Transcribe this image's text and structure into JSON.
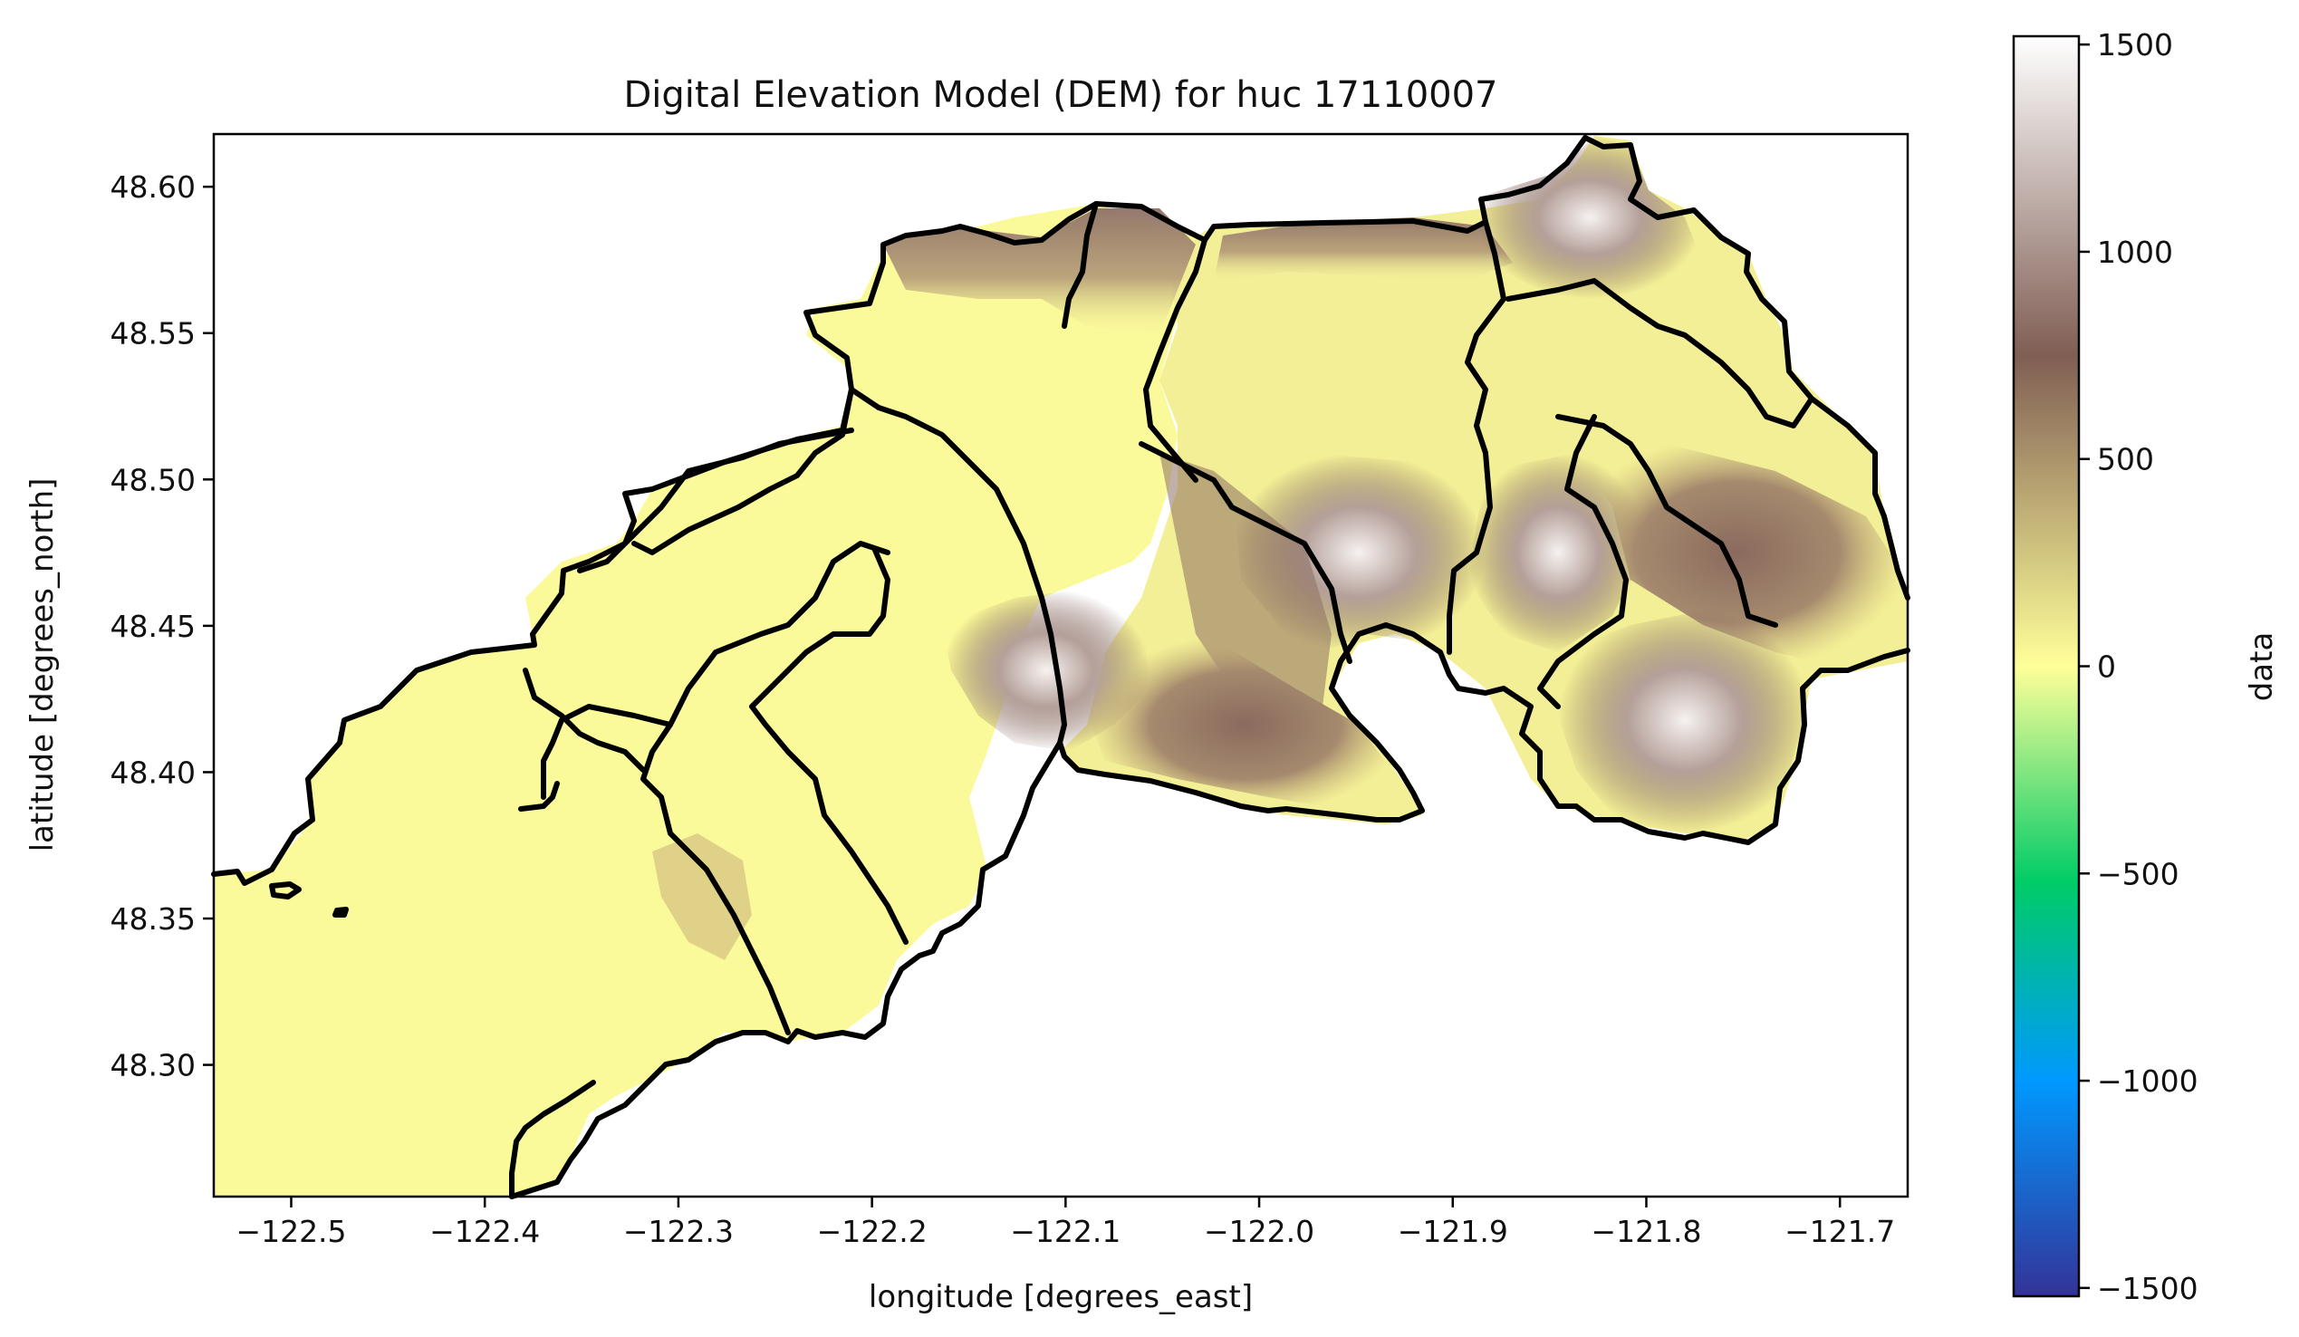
{
  "title": "Digital Elevation Model (DEM) for huc 17110007",
  "map": {
    "xlabel": "longitude [degrees_east]",
    "ylabel": "latitude [degrees_north]",
    "xlim": [
      -122.54,
      -121.665
    ],
    "ylim": [
      48.255,
      48.618
    ],
    "x_ticks": [
      "−122.5",
      "−122.4",
      "−122.3",
      "−122.2",
      "−122.1",
      "−122.0",
      "−121.9",
      "−121.8",
      "−121.7"
    ],
    "x_tick_values": [
      -122.5,
      -122.4,
      -122.3,
      -122.2,
      -122.1,
      -122.0,
      -121.9,
      -121.8,
      -121.7
    ],
    "y_ticks": [
      "48.30",
      "48.35",
      "48.40",
      "48.45",
      "48.50",
      "48.55",
      "48.60"
    ],
    "y_tick_values": [
      48.3,
      48.35,
      48.4,
      48.45,
      48.5,
      48.55,
      48.6
    ],
    "colormap": "terrain",
    "boundary_color": "#000000"
  },
  "colorbar": {
    "label": "data",
    "ticks": [
      "1500",
      "1000",
      "500",
      "0",
      "−500",
      "−1000",
      "−1500"
    ],
    "tick_values": [
      1500,
      1000,
      500,
      0,
      -500,
      -1000,
      -1500
    ],
    "range": [
      -1520,
      1520
    ],
    "stops": [
      {
        "value": -1520,
        "color": "#333399"
      },
      {
        "value": -1000,
        "color": "#0099ff"
      },
      {
        "value": -520,
        "color": "#00cc66"
      },
      {
        "value": 0,
        "color": "#ffff99"
      },
      {
        "value": 750,
        "color": "#805e54"
      },
      {
        "value": 1520,
        "color": "#ffffff"
      }
    ]
  }
}
